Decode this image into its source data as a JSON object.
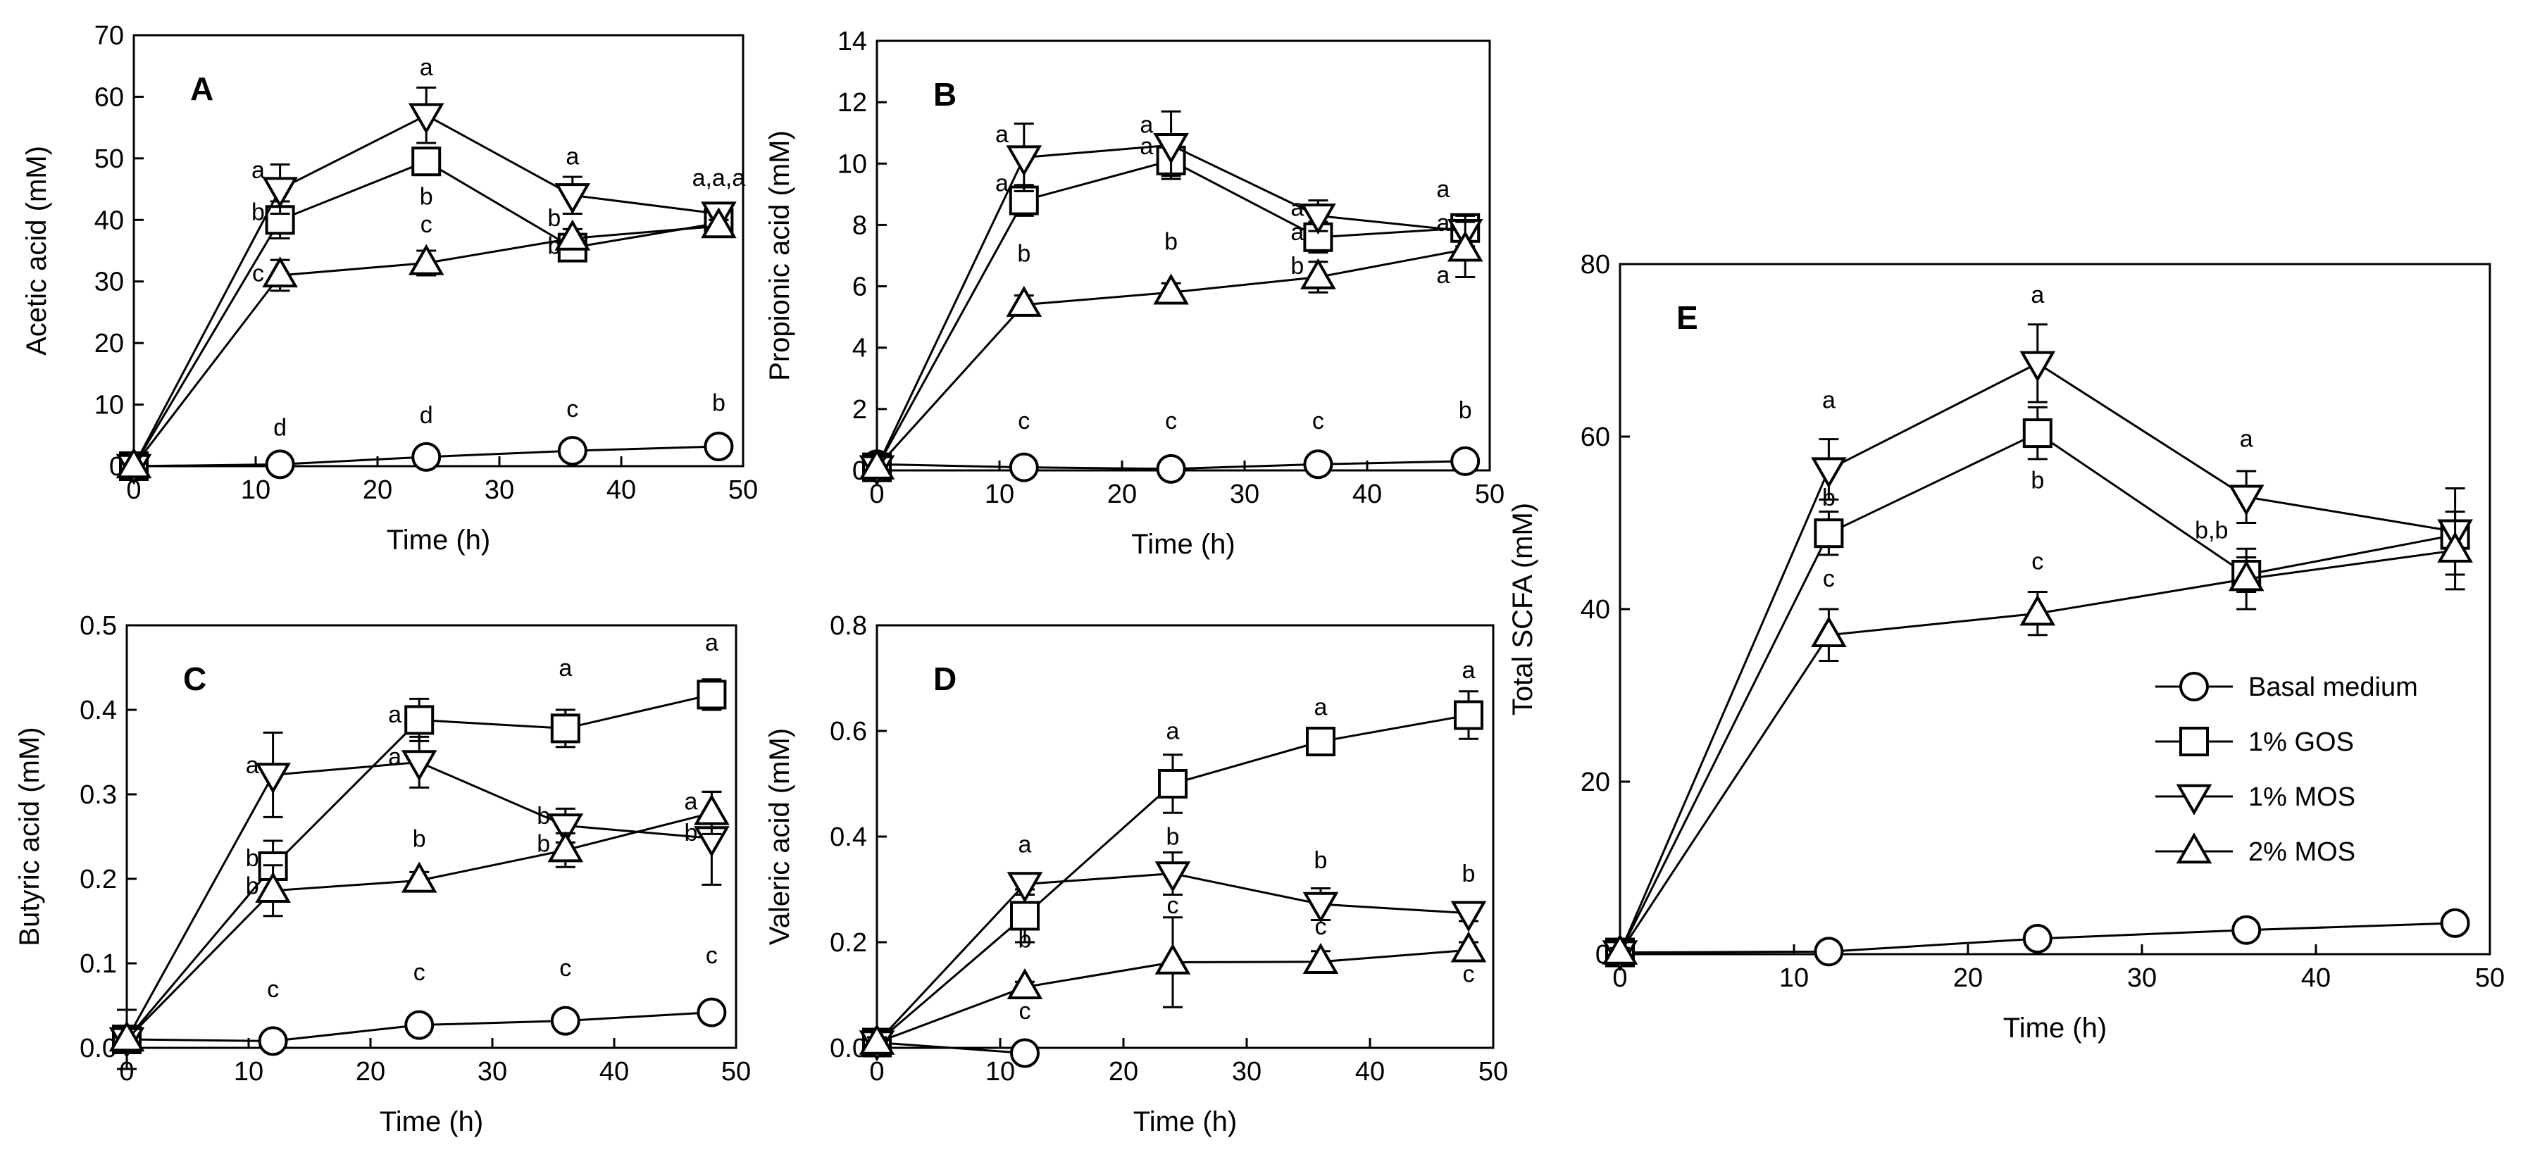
{
  "legend": [
    {
      "name": "Basal medium",
      "marker": "circle"
    },
    {
      "name": "1% GOS",
      "marker": "square"
    },
    {
      "name": "1% MOS",
      "marker": "triangle-down"
    },
    {
      "name": "2% MOS",
      "marker": "triangle-up"
    }
  ],
  "chart_data": [
    {
      "type": "line",
      "panel": "A",
      "xlabel": "Time (h)",
      "ylabel": "Acetic acid (mM)",
      "xlim": [
        0,
        50
      ],
      "ylim": [
        0,
        70
      ],
      "xticks": [
        0,
        10,
        20,
        30,
        40,
        50
      ],
      "yticks": [
        0,
        10,
        20,
        30,
        40,
        50,
        60,
        70
      ],
      "ytick_labels": [
        "0",
        "10",
        "20",
        "30",
        "40",
        "50",
        "60",
        "70"
      ],
      "x": [
        0,
        12,
        24,
        36,
        48
      ],
      "series": [
        {
          "name": "Basal medium",
          "values": [
            0,
            0.3,
            1.5,
            2.5,
            3.2
          ],
          "err": [
            0,
            0,
            0,
            0,
            0
          ]
        },
        {
          "name": "1% GOS",
          "values": [
            0,
            40,
            49.5,
            35.5,
            39.5
          ],
          "err": [
            0,
            3,
            2,
            2,
            1
          ]
        },
        {
          "name": "1% MOS",
          "values": [
            0,
            45,
            57,
            44,
            41
          ],
          "err": [
            0,
            4,
            4.5,
            3,
            1
          ]
        },
        {
          "name": "2% MOS",
          "values": [
            0,
            31,
            33,
            37,
            39
          ],
          "err": [
            0,
            2.5,
            2,
            1.5,
            1
          ]
        }
      ],
      "annotations": [
        {
          "text": "d",
          "x": 12,
          "y": 5
        },
        {
          "text": "d",
          "x": 24,
          "y": 7
        },
        {
          "text": "c",
          "x": 36,
          "y": 8
        },
        {
          "text": "b",
          "x": 48,
          "y": 9
        },
        {
          "text": "a",
          "x": 10.2,
          "y": 46.8
        },
        {
          "text": "b",
          "x": 10.2,
          "y": 40
        },
        {
          "text": "c",
          "x": 10.2,
          "y": 30
        },
        {
          "text": "a",
          "x": 24,
          "y": 63.5
        },
        {
          "text": "b",
          "x": 24,
          "y": 42.5
        },
        {
          "text": "c",
          "x": 24,
          "y": 38
        },
        {
          "text": "a",
          "x": 36,
          "y": 49
        },
        {
          "text": "b",
          "x": 34.5,
          "y": 39
        },
        {
          "text": "b",
          "x": 34.5,
          "y": 34.5
        },
        {
          "text": "a,a,a",
          "x": 48,
          "y": 45.5
        }
      ]
    },
    {
      "type": "line",
      "panel": "B",
      "xlabel": "Time (h)",
      "ylabel": "Propionic acid (mM)",
      "xlim": [
        0,
        50
      ],
      "ylim": [
        0,
        14
      ],
      "xticks": [
        0,
        10,
        20,
        30,
        40,
        50
      ],
      "yticks": [
        0,
        2,
        4,
        6,
        8,
        10,
        12,
        14
      ],
      "ytick_labels": [
        "0",
        "2",
        "4",
        "6",
        "8",
        "10",
        "12",
        "14"
      ],
      "x": [
        0,
        12,
        24,
        36,
        48
      ],
      "series": [
        {
          "name": "Basal medium",
          "values": [
            0.2,
            0.1,
            0.05,
            0.2,
            0.3
          ],
          "err": [
            0,
            0,
            0,
            0,
            0
          ]
        },
        {
          "name": "1% GOS",
          "values": [
            0.1,
            8.8,
            10.1,
            7.6,
            7.9
          ],
          "err": [
            0,
            0.5,
            0.5,
            0.5,
            0.3
          ]
        },
        {
          "name": "1% MOS",
          "values": [
            0.1,
            10.2,
            10.6,
            8.3,
            7.8
          ],
          "err": [
            0,
            1.1,
            1.1,
            0.5,
            0.5
          ]
        },
        {
          "name": "2% MOS",
          "values": [
            0.1,
            5.4,
            5.8,
            6.3,
            7.2
          ],
          "err": [
            0,
            0.3,
            0.3,
            0.5,
            0.9
          ]
        }
      ],
      "annotations": [
        {
          "text": "c",
          "x": 12,
          "y": 1.35
        },
        {
          "text": "c",
          "x": 24,
          "y": 1.35
        },
        {
          "text": "c",
          "x": 36,
          "y": 1.35
        },
        {
          "text": "b",
          "x": 48,
          "y": 1.7
        },
        {
          "text": "a",
          "x": 10.2,
          "y": 10.7
        },
        {
          "text": "a",
          "x": 10.2,
          "y": 9.1
        },
        {
          "text": "b",
          "x": 12,
          "y": 6.8
        },
        {
          "text": "a",
          "x": 22,
          "y": 11
        },
        {
          "text": "a",
          "x": 22,
          "y": 10.3
        },
        {
          "text": "b",
          "x": 24,
          "y": 7.2
        },
        {
          "text": "a",
          "x": 34.3,
          "y": 8.3
        },
        {
          "text": "a",
          "x": 34.3,
          "y": 7.5
        },
        {
          "text": "b",
          "x": 34.3,
          "y": 6.4
        },
        {
          "text": "a",
          "x": 46.2,
          "y": 8.9
        },
        {
          "text": "a",
          "x": 46.2,
          "y": 7.8
        },
        {
          "text": "a",
          "x": 46.2,
          "y": 6.1
        }
      ]
    },
    {
      "type": "line",
      "panel": "C",
      "xlabel": "Time (h)",
      "ylabel": "Butyric acid (mM)",
      "xlim": [
        0,
        50
      ],
      "ylim": [
        0,
        0.5
      ],
      "xticks": [
        0,
        10,
        20,
        30,
        40,
        50
      ],
      "yticks": [
        0,
        0.1,
        0.2,
        0.3,
        0.4,
        0.5
      ],
      "ytick_labels": [
        "0.0",
        "0.1",
        "0.2",
        "0.3",
        "0.4",
        "0.5"
      ],
      "x": [
        0,
        12,
        24,
        36,
        48
      ],
      "series": [
        {
          "name": "Basal medium",
          "values": [
            0.01,
            0.008,
            0.027,
            0.032,
            0.042
          ],
          "err": [
            0.035,
            0.005,
            0.01,
            0.012,
            0.012
          ]
        },
        {
          "name": "1% GOS",
          "values": [
            0.01,
            0.215,
            0.388,
            0.378,
            0.418
          ],
          "err": [
            0.035,
            0.03,
            0.025,
            0.022,
            0.018
          ]
        },
        {
          "name": "1% MOS",
          "values": [
            0.01,
            0.323,
            0.338,
            0.263,
            0.248
          ],
          "err": [
            0.035,
            0.05,
            0.03,
            0.02,
            0.055
          ]
        },
        {
          "name": "2% MOS",
          "values": [
            0.01,
            0.186,
            0.198,
            0.234,
            0.278
          ],
          "err": [
            0.035,
            0.03,
            0.01,
            0.02,
            0.025
          ]
        }
      ],
      "annotations": [
        {
          "text": "c",
          "x": 12,
          "y": 0.06
        },
        {
          "text": "c",
          "x": 24,
          "y": 0.08
        },
        {
          "text": "c",
          "x": 36,
          "y": 0.085
        },
        {
          "text": "c",
          "x": 48,
          "y": 0.1
        },
        {
          "text": "a",
          "x": 10.3,
          "y": 0.325
        },
        {
          "text": "b",
          "x": 10.3,
          "y": 0.215
        },
        {
          "text": "b",
          "x": 10.3,
          "y": 0.182
        },
        {
          "text": "a",
          "x": 22,
          "y": 0.385
        },
        {
          "text": "a",
          "x": 22,
          "y": 0.335
        },
        {
          "text": "b",
          "x": 24,
          "y": 0.238
        },
        {
          "text": "a",
          "x": 36,
          "y": 0.44
        },
        {
          "text": "b",
          "x": 34.2,
          "y": 0.265
        },
        {
          "text": "b",
          "x": 34.2,
          "y": 0.232
        },
        {
          "text": "a",
          "x": 48,
          "y": 0.47
        },
        {
          "text": "a",
          "x": 46.3,
          "y": 0.282
        },
        {
          "text": "b",
          "x": 46.3,
          "y": 0.245
        }
      ]
    },
    {
      "type": "line",
      "panel": "D",
      "xlabel": "Time (h)",
      "ylabel": "Valeric acid (mM)",
      "xlim": [
        0,
        50
      ],
      "ylim": [
        0,
        0.8
      ],
      "xticks": [
        0,
        10,
        20,
        30,
        40,
        50
      ],
      "yticks": [
        0,
        0.2,
        0.4,
        0.6,
        0.8
      ],
      "ytick_labels": [
        "0.0",
        "0.2",
        "0.4",
        "0.6",
        "0.8"
      ],
      "x": [
        0,
        12,
        24,
        36,
        48
      ],
      "series": [
        {
          "name": "Basal medium",
          "values": [
            0.01,
            -0.01,
            null,
            null,
            null
          ],
          "err": [
            0,
            0,
            0,
            0,
            0
          ]
        },
        {
          "name": "1% GOS",
          "values": [
            0.01,
            0.25,
            0.5,
            0.58,
            0.63
          ],
          "err": [
            0.01,
            0.05,
            0.055,
            0.02,
            0.045
          ]
        },
        {
          "name": "1% MOS",
          "values": [
            0.01,
            0.31,
            0.33,
            0.272,
            0.255
          ],
          "err": [
            0.01,
            0.02,
            0.04,
            0.03,
            0.015
          ]
        },
        {
          "name": "2% MOS",
          "values": [
            0.01,
            0.115,
            0.162,
            0.163,
            0.185
          ],
          "err": [
            0.01,
            0.01,
            0.085,
            0.02,
            0.015
          ]
        }
      ],
      "annotations": [
        {
          "text": "a",
          "x": 12,
          "y": 0.37
        },
        {
          "text": "b",
          "x": 12,
          "y": 0.19
        },
        {
          "text": "c",
          "x": 12,
          "y": 0.055
        },
        {
          "text": "a",
          "x": 24,
          "y": 0.585
        },
        {
          "text": "b",
          "x": 24,
          "y": 0.385
        },
        {
          "text": "c",
          "x": 24,
          "y": 0.255
        },
        {
          "text": "a",
          "x": 36,
          "y": 0.63
        },
        {
          "text": "b",
          "x": 36,
          "y": 0.34
        },
        {
          "text": "c",
          "x": 36,
          "y": 0.215
        },
        {
          "text": "a",
          "x": 48,
          "y": 0.7
        },
        {
          "text": "b",
          "x": 48,
          "y": 0.315
        },
        {
          "text": "c",
          "x": 48,
          "y": 0.125
        }
      ]
    },
    {
      "type": "line",
      "panel": "E",
      "xlabel": "Time (h)",
      "ylabel": "Total SCFA (mM)",
      "xlim": [
        0,
        50
      ],
      "ylim": [
        0,
        80
      ],
      "xticks": [
        0,
        10,
        20,
        30,
        40,
        50
      ],
      "yticks": [
        0,
        20,
        40,
        60,
        80
      ],
      "ytick_labels": [
        "0",
        "20",
        "40",
        "60",
        "80"
      ],
      "x": [
        0,
        12,
        24,
        36,
        48
      ],
      "series": [
        {
          "name": "Basal medium",
          "values": [
            0.2,
            0.3,
            1.8,
            2.8,
            3.6
          ],
          "err": [
            0,
            0,
            0,
            0,
            0
          ]
        },
        {
          "name": "1% GOS",
          "values": [
            0.2,
            48.8,
            60.4,
            44,
            48.6
          ],
          "err": [
            0.5,
            2.5,
            3,
            2,
            1
          ]
        },
        {
          "name": "1% MOS",
          "values": [
            0.2,
            56.2,
            68.5,
            53,
            49
          ],
          "err": [
            0.5,
            3.5,
            4.5,
            3,
            5
          ]
        },
        {
          "name": "2% MOS",
          "values": [
            0.2,
            37,
            39.5,
            43.5,
            46.8
          ],
          "err": [
            0.5,
            3,
            2.5,
            3.5,
            4.5
          ]
        }
      ],
      "annotations": [
        {
          "text": "a",
          "x": 12,
          "y": 63.3
        },
        {
          "text": "b",
          "x": 12,
          "y": 52
        },
        {
          "text": "c",
          "x": 12,
          "y": 42.6
        },
        {
          "text": "a",
          "x": 24,
          "y": 75.5
        },
        {
          "text": "b",
          "x": 24,
          "y": 54
        },
        {
          "text": "c",
          "x": 24,
          "y": 44.6
        },
        {
          "text": "a",
          "x": 36,
          "y": 58.8
        },
        {
          "text": "b,b",
          "x": 34,
          "y": 48.2
        }
      ]
    }
  ]
}
